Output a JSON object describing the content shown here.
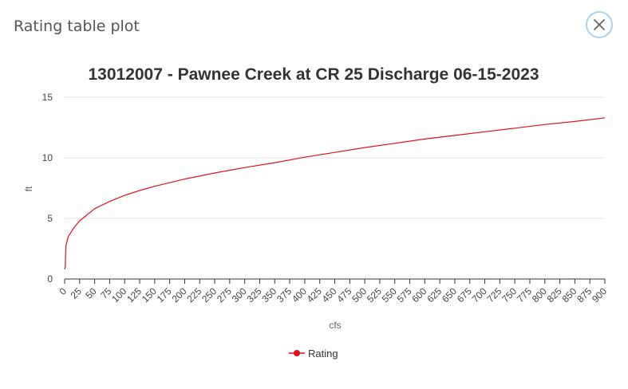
{
  "modal": {
    "title": "Rating table plot",
    "close_icon": "close-icon"
  },
  "colors": {
    "series": "#e0101a",
    "close_border": "#a9d3f2",
    "grid": "#e6e6e6"
  },
  "chart_data": {
    "type": "line",
    "title": "13012007 - Pawnee Creek at CR 25 Discharge 06-15-2023",
    "xlabel": "cfs",
    "ylabel": "ft",
    "xlim": [
      0,
      900
    ],
    "ylim": [
      0,
      15
    ],
    "x_ticks": [
      0,
      25,
      50,
      75,
      100,
      125,
      150,
      175,
      200,
      225,
      250,
      275,
      300,
      325,
      350,
      375,
      400,
      425,
      450,
      475,
      500,
      525,
      550,
      575,
      600,
      625,
      650,
      675,
      700,
      725,
      750,
      775,
      800,
      825,
      850,
      875,
      900
    ],
    "y_ticks": [
      0,
      5,
      10,
      15
    ],
    "grid": true,
    "legend_position": "bottom",
    "series": [
      {
        "name": "Rating",
        "color": "#e0101a",
        "x": [
          0,
          1,
          2,
          4,
          6,
          10,
          15,
          20,
          25,
          35,
          50,
          75,
          100,
          125,
          150,
          175,
          200,
          250,
          300,
          350,
          400,
          450,
          500,
          550,
          600,
          650,
          700,
          750,
          800,
          850,
          900
        ],
        "y": [
          0.8,
          1.0,
          2.7,
          3.1,
          3.5,
          3.8,
          4.2,
          4.5,
          4.8,
          5.2,
          5.8,
          6.4,
          6.9,
          7.3,
          7.65,
          7.95,
          8.25,
          8.75,
          9.2,
          9.6,
          10.05,
          10.45,
          10.85,
          11.2,
          11.55,
          11.85,
          12.15,
          12.45,
          12.75,
          13.0,
          13.3
        ]
      }
    ]
  }
}
